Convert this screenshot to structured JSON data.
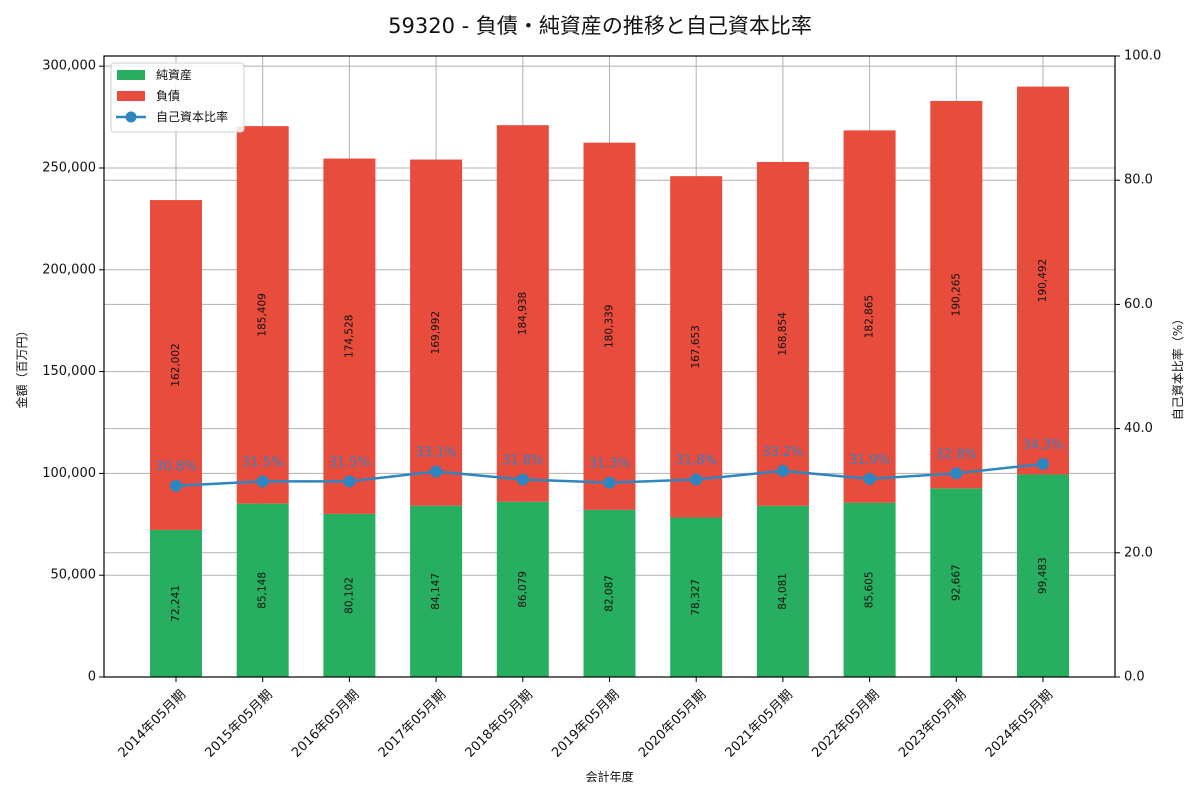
{
  "chart_data": {
    "type": "bar",
    "stacked": true,
    "title": "59320 - 負債・純資産の推移と自己資本比率",
    "xlabel": "会計年度",
    "ylabel": "金額（百万円）",
    "y2label": "自己資本比率（%）",
    "ylim": [
      0,
      305000
    ],
    "y2lim": [
      0,
      100
    ],
    "yticks": [
      0,
      50000,
      100000,
      150000,
      200000,
      250000,
      300000
    ],
    "ytick_labels": [
      "0",
      "50,000",
      "100,000",
      "150,000",
      "200,000",
      "250,000",
      "300,000"
    ],
    "y2ticks": [
      0,
      20,
      40,
      60,
      80,
      100
    ],
    "y2tick_labels": [
      "0.0",
      "20.0",
      "40.0",
      "60.0",
      "80.0",
      "100.0"
    ],
    "grid": true,
    "legend_position": "upper left",
    "categories": [
      "2014年05月期",
      "2015年05月期",
      "2016年05月期",
      "2017年05月期",
      "2018年05月期",
      "2019年05月期",
      "2020年05月期",
      "2021年05月期",
      "2022年05月期",
      "2023年05月期",
      "2024年05月期"
    ],
    "series": [
      {
        "name": "純資産",
        "type": "bar",
        "color": "#27ae60",
        "values": [
          72241,
          85148,
          80102,
          84147,
          86079,
          82087,
          78327,
          84081,
          85605,
          92667,
          99483
        ],
        "labels": [
          "72,241",
          "85,148",
          "80,102",
          "84,147",
          "86,079",
          "82,087",
          "78,327",
          "84,081",
          "85,605",
          "92,667",
          "99,483"
        ]
      },
      {
        "name": "負債",
        "type": "bar",
        "color": "#e74c3c",
        "values": [
          162002,
          185409,
          174528,
          169992,
          184938,
          180339,
          167653,
          168854,
          182865,
          190265,
          190492
        ],
        "labels": [
          "162,002",
          "185,409",
          "174,528",
          "169,992",
          "184,938",
          "180,339",
          "167,653",
          "168,854",
          "182,865",
          "190,265",
          "190,492"
        ]
      },
      {
        "name": "自己資本比率",
        "type": "line",
        "axis": "right",
        "color": "#2e86c1",
        "values": [
          30.8,
          31.5,
          31.5,
          33.1,
          31.8,
          31.3,
          31.8,
          33.2,
          31.9,
          32.8,
          34.3
        ],
        "labels": [
          "30.8%",
          "31.5%",
          "31.5%",
          "33.1%",
          "31.8%",
          "31.3%",
          "31.8%",
          "33.2%",
          "31.9%",
          "32.8%",
          "34.3%"
        ]
      }
    ],
    "legend": [
      {
        "label": "純資産",
        "kind": "bar",
        "color": "#27ae60"
      },
      {
        "label": "負債",
        "kind": "bar",
        "color": "#e74c3c"
      },
      {
        "label": "自己資本比率",
        "kind": "line",
        "color": "#2e86c1"
      }
    ]
  }
}
